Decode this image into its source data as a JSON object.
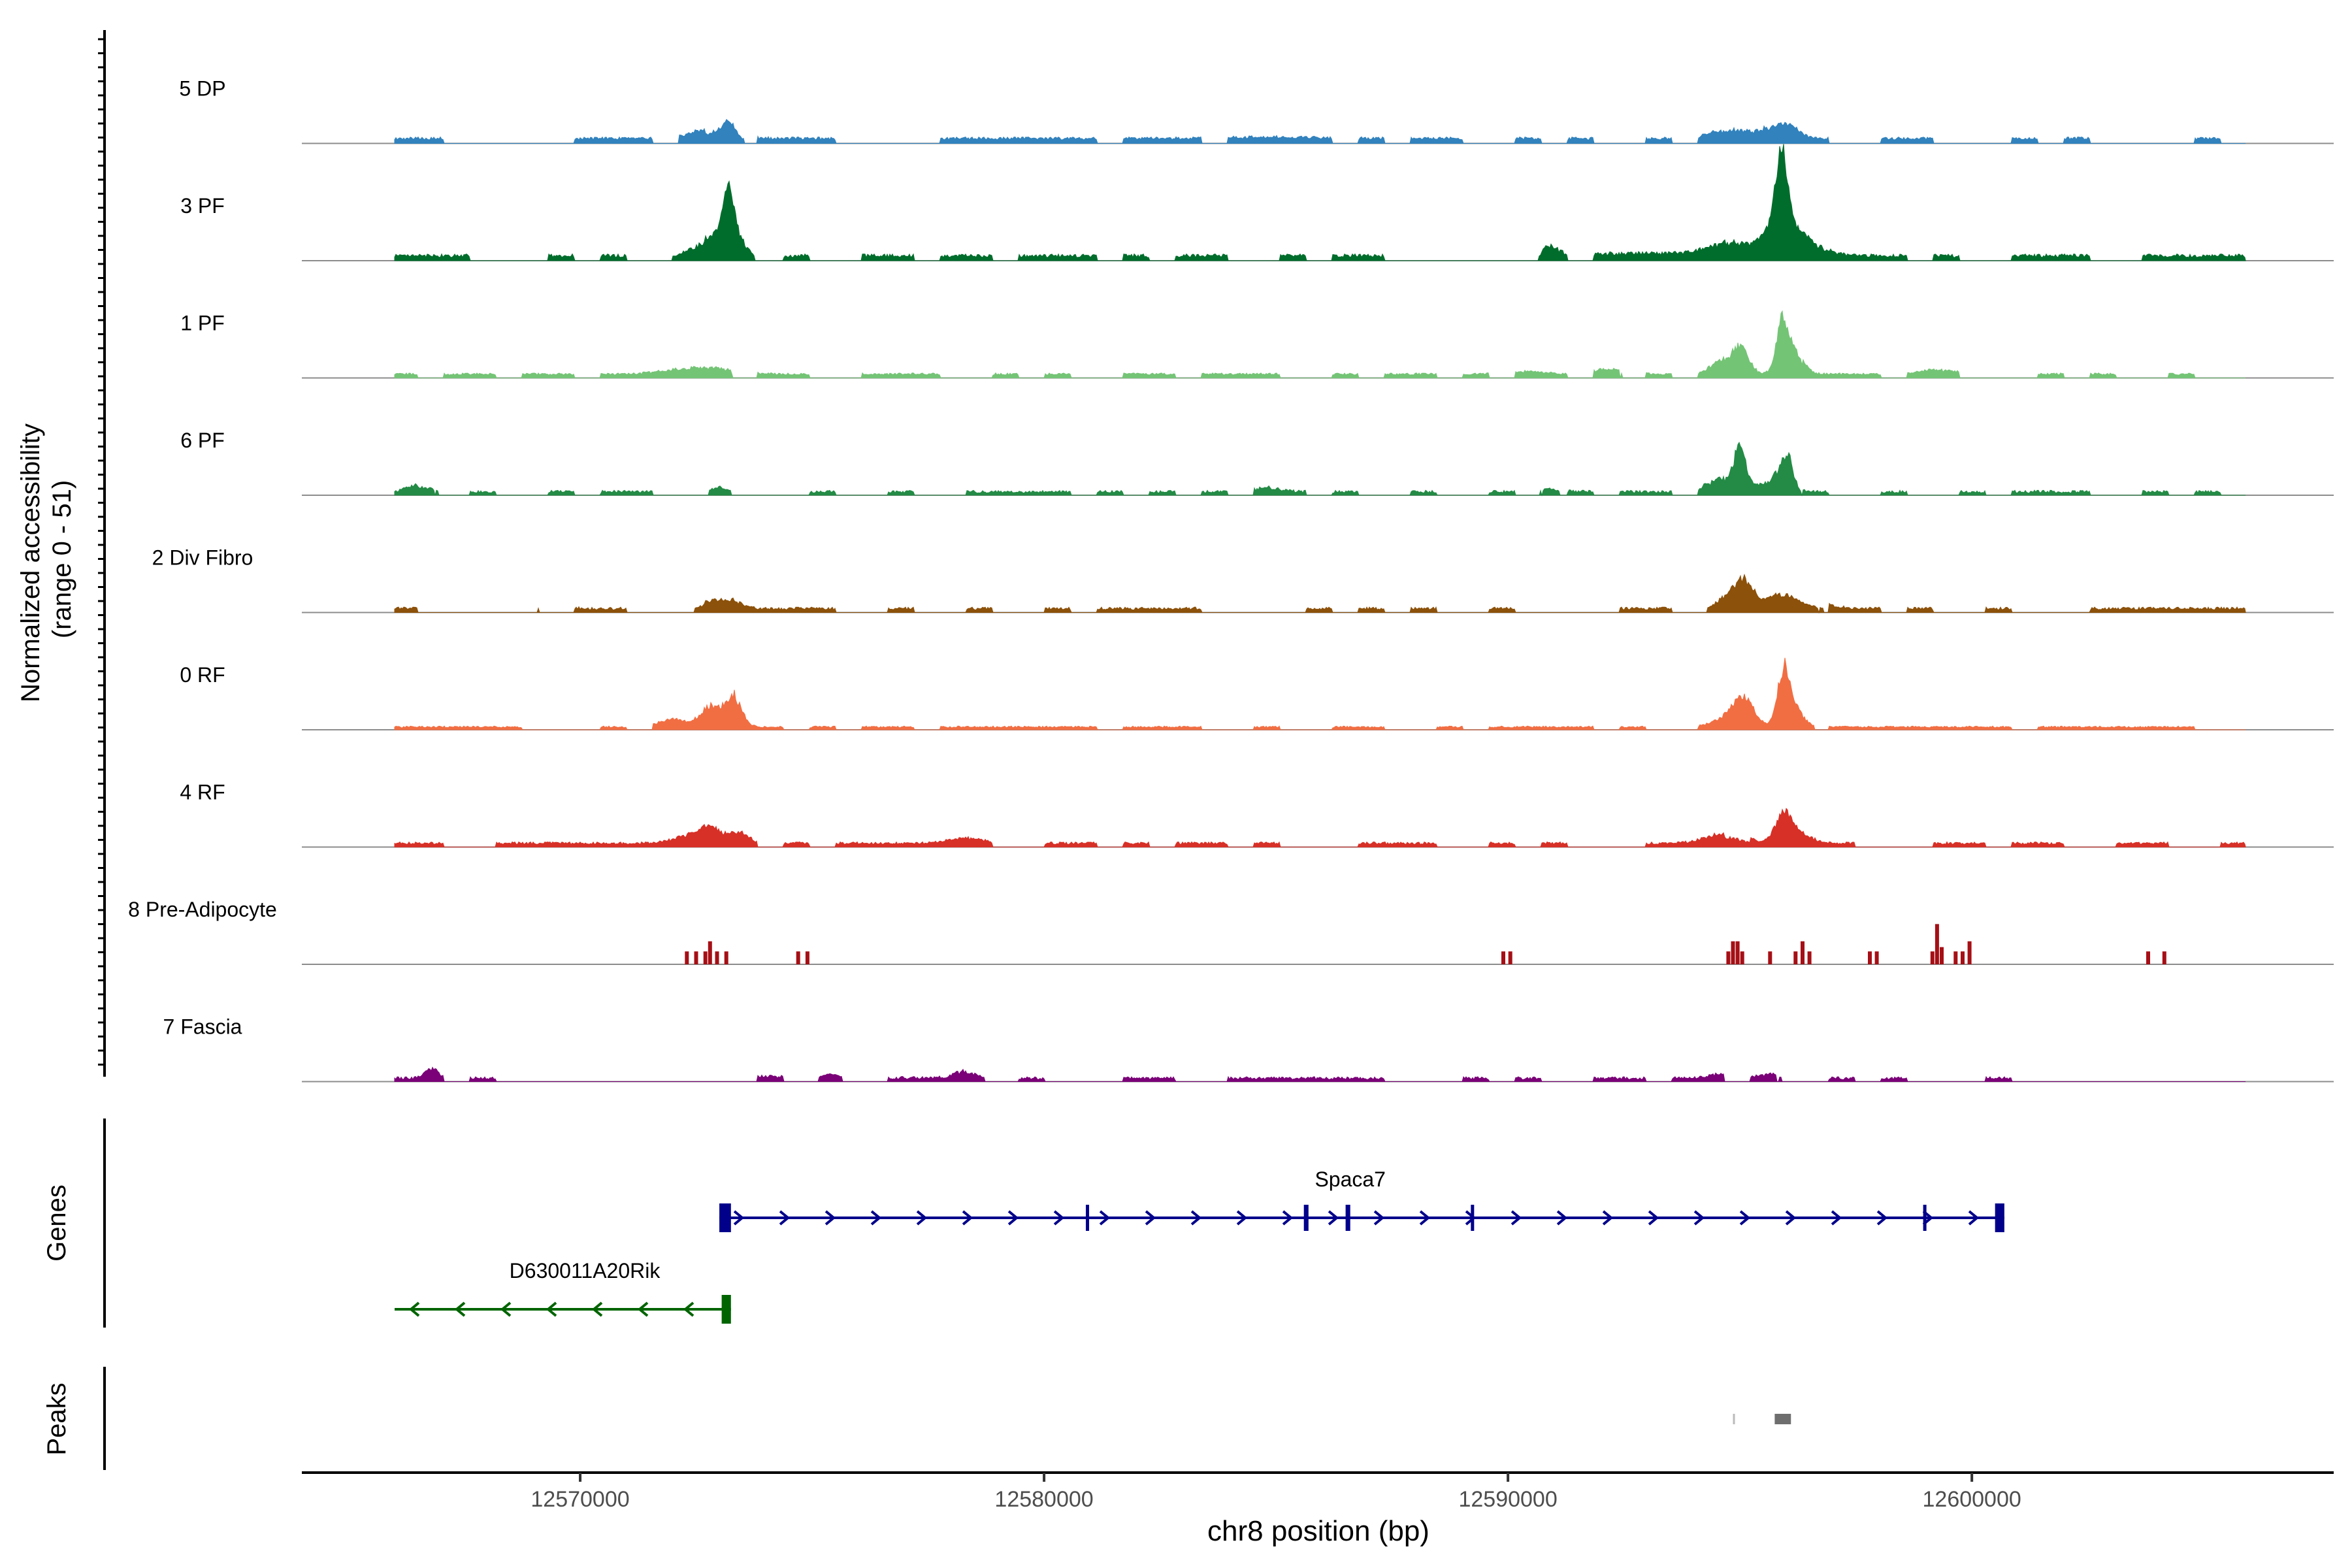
{
  "chart_data": {
    "type": "area",
    "title": "",
    "chromosome": "chr8",
    "xlabel": "chr8 position (bp)",
    "ylabel_line1": "Normalized accessibility",
    "ylabel_line2": "(range 0 - 51)",
    "xlim": [
      12564000,
      12607800
    ],
    "ylim": [
      0,
      51
    ],
    "x_ticks": [
      {
        "value": 12570000,
        "label": "12570000"
      },
      {
        "value": 12580000,
        "label": "12580000"
      },
      {
        "value": 12590000,
        "label": "12590000"
      },
      {
        "value": 12600000,
        "label": "12600000"
      }
    ],
    "signal_range": [
      12566000,
      12605900
    ],
    "tracks": [
      {
        "name": "5 DP",
        "color": "#3182BD",
        "style": "area",
        "baseline": 2.5,
        "noise": 2.0,
        "density": 0.55,
        "peaks": [
          [
            12572900,
            600,
            8
          ],
          [
            12573200,
            200,
            10
          ],
          [
            12594700,
            500,
            6
          ],
          [
            12595600,
            450,
            11
          ],
          [
            12596100,
            300,
            7
          ],
          [
            12585000,
            1200,
            1
          ]
        ]
      },
      {
        "name": "3 PF",
        "color": "#006D2C",
        "style": "area",
        "baseline": 2.2,
        "noise": 2.5,
        "density": 0.5,
        "peaks": [
          [
            12572700,
            600,
            12
          ],
          [
            12573200,
            150,
            35
          ],
          [
            12573300,
            350,
            18
          ],
          [
            12590900,
            250,
            7
          ],
          [
            12594800,
            700,
            9
          ],
          [
            12595900,
            150,
            48
          ],
          [
            12595900,
            400,
            26
          ],
          [
            12596200,
            700,
            12
          ],
          [
            12593000,
            1500,
            2
          ]
        ]
      },
      {
        "name": "1 PF",
        "color": "#74C476",
        "style": "area",
        "baseline": 2.0,
        "noise": 1.5,
        "density": 0.6,
        "peaks": [
          [
            12572600,
            900,
            5
          ],
          [
            12592200,
            600,
            3.5
          ],
          [
            12594600,
            350,
            9
          ],
          [
            12595000,
            250,
            22
          ],
          [
            12595900,
            150,
            32
          ],
          [
            12596100,
            300,
            22
          ],
          [
            12599200,
            600,
            3
          ],
          [
            12590400,
            500,
            2
          ]
        ]
      },
      {
        "name": "6 PF",
        "color": "#238B45",
        "style": "area",
        "baseline": 1.5,
        "noise": 2.0,
        "density": 0.45,
        "peaks": [
          [
            12566600,
            400,
            6
          ],
          [
            12573000,
            300,
            6
          ],
          [
            12590900,
            300,
            5
          ],
          [
            12594600,
            400,
            10
          ],
          [
            12595000,
            200,
            30
          ],
          [
            12595700,
            400,
            8
          ],
          [
            12596000,
            200,
            27
          ],
          [
            12584800,
            400,
            3
          ]
        ]
      },
      {
        "name": "2 Div Fibro",
        "color": "#8C510A",
        "style": "area",
        "baseline": 1.8,
        "noise": 2.0,
        "density": 0.5,
        "peaks": [
          [
            12572800,
            400,
            6
          ],
          [
            12573300,
            300,
            5
          ],
          [
            12594800,
            450,
            12
          ],
          [
            12595100,
            250,
            18
          ],
          [
            12595900,
            400,
            12
          ],
          [
            12596500,
            600,
            4
          ],
          [
            12569200,
            500,
            3
          ]
        ]
      },
      {
        "name": "0 RF",
        "color": "#F16E43",
        "style": "area",
        "baseline": 1.4,
        "noise": 1.2,
        "density": 0.6,
        "peaks": [
          [
            12572000,
            400,
            6
          ],
          [
            12572800,
            300,
            15
          ],
          [
            12573300,
            250,
            23
          ],
          [
            12594800,
            450,
            8
          ],
          [
            12595100,
            300,
            17
          ],
          [
            12595950,
            180,
            40
          ],
          [
            12596200,
            350,
            12
          ]
        ]
      },
      {
        "name": "4 RF",
        "color": "#D73027",
        "style": "area",
        "baseline": 1.8,
        "noise": 1.8,
        "density": 0.6,
        "peaks": [
          [
            12572400,
            500,
            6
          ],
          [
            12572800,
            300,
            10
          ],
          [
            12573400,
            300,
            8
          ],
          [
            12578300,
            500,
            4
          ],
          [
            12594700,
            600,
            7
          ],
          [
            12595950,
            250,
            21
          ],
          [
            12596300,
            400,
            6
          ]
        ]
      },
      {
        "name": "8 Pre-Adipocyte",
        "color": "#A50F15",
        "style": "bars",
        "bars": [
          [
            12572300,
            9
          ],
          [
            12572500,
            9
          ],
          [
            12572700,
            9
          ],
          [
            12572800,
            16
          ],
          [
            12572950,
            9
          ],
          [
            12573150,
            9
          ],
          [
            12574700,
            9
          ],
          [
            12574900,
            9
          ],
          [
            12589900,
            9
          ],
          [
            12590050,
            9
          ],
          [
            12594750,
            9
          ],
          [
            12594850,
            16
          ],
          [
            12594950,
            16
          ],
          [
            12595050,
            9
          ],
          [
            12595650,
            9
          ],
          [
            12596200,
            9
          ],
          [
            12596350,
            16
          ],
          [
            12596500,
            9
          ],
          [
            12597800,
            9
          ],
          [
            12597950,
            9
          ],
          [
            12599150,
            9
          ],
          [
            12599250,
            28
          ],
          [
            12599350,
            12
          ],
          [
            12599650,
            9
          ],
          [
            12599800,
            9
          ],
          [
            12599950,
            16
          ],
          [
            12603800,
            9
          ],
          [
            12604150,
            9
          ]
        ]
      },
      {
        "name": "7 Fascia",
        "color": "#7A0177",
        "style": "area",
        "baseline": 1.4,
        "noise": 2.0,
        "density": 0.35,
        "peaks": [
          [
            12566800,
            200,
            7
          ],
          [
            12573400,
            2500,
            1.5
          ],
          [
            12575400,
            300,
            5
          ],
          [
            12578400,
            400,
            6
          ],
          [
            12594500,
            300,
            3
          ],
          [
            12595800,
            500,
            3
          ]
        ]
      }
    ],
    "panel_labels": {
      "genes": "Genes",
      "peaks": "Peaks"
    },
    "genes": [
      {
        "name": "Spaca7",
        "start": 12573000,
        "end": 12600700,
        "strand": "+",
        "color": "#00008B",
        "exons": [
          [
            12573000,
            12573250
          ],
          [
            12580900,
            12580950
          ],
          [
            12585600,
            12585700
          ],
          [
            12586500,
            12586600
          ],
          [
            12589200,
            12589250
          ],
          [
            12598950,
            12599000
          ],
          [
            12600500,
            12600700
          ]
        ]
      },
      {
        "name": "D630011A20Rik",
        "start": 12566000,
        "end": 12573250,
        "strand": "-",
        "color": "#006400",
        "exons": [
          [
            12573050,
            12573250
          ]
        ]
      }
    ],
    "peaks": [
      {
        "start": 12594850,
        "end": 12594880,
        "color": "#BBBBBB"
      },
      {
        "start": 12595750,
        "end": 12596100,
        "color": "#6E6E6E"
      }
    ]
  }
}
